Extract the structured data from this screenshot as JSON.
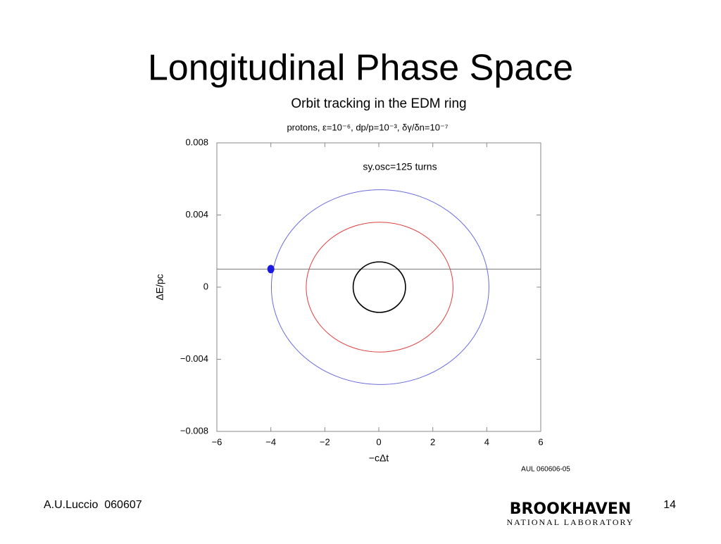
{
  "slide": {
    "title": "Longitudinal Phase Space",
    "footer": "A.U.Luccio  060607",
    "page_number": "14",
    "logo": "BROOKHAVEN",
    "logo_subtitle": "NATIONAL LABORATORY"
  },
  "chart_data": {
    "type": "ellipse",
    "title": "Orbit tracking in the EDM ring",
    "subtitle": "protons, ε=10⁻⁶, dp/p=10⁻³, δγ/δn=10⁻⁷",
    "annotation": "sy.osc=125 turns",
    "credit": "AUL 060606-05",
    "x_label": "−cΔt",
    "y_label": "ΔE/pc",
    "xlim": [
      -6,
      6
    ],
    "xticks": [
      {
        "value": -6,
        "label": "−6"
      },
      {
        "value": -4,
        "label": "−4"
      },
      {
        "value": -2,
        "label": "−2"
      },
      0,
      2,
      4,
      6
    ],
    "ylim": [
      -0.008,
      0.008
    ],
    "yticks": [
      {
        "value": -0.008,
        "label": "−0.008"
      },
      {
        "value": -0.004,
        "label": "−0.004"
      },
      0,
      0.004,
      0.008
    ],
    "series": [
      {
        "color": "#6a6ae0",
        "center_x": 0.05,
        "center_y": 0,
        "semi_x": 4.03,
        "semi_y": 0.0054
      },
      {
        "color": "#e04040",
        "center_x": 0.03,
        "center_y": 0,
        "semi_x": 2.72,
        "semi_y": 0.0036
      },
      {
        "color": "#000000",
        "center_x": 0.02,
        "center_y": 0,
        "semi_x": 0.97,
        "semi_y": 0.0014
      }
    ],
    "hline": 0.001,
    "points": [
      {
        "x": -4,
        "y": 0.001,
        "color": "#1a1ae0"
      }
    ]
  }
}
